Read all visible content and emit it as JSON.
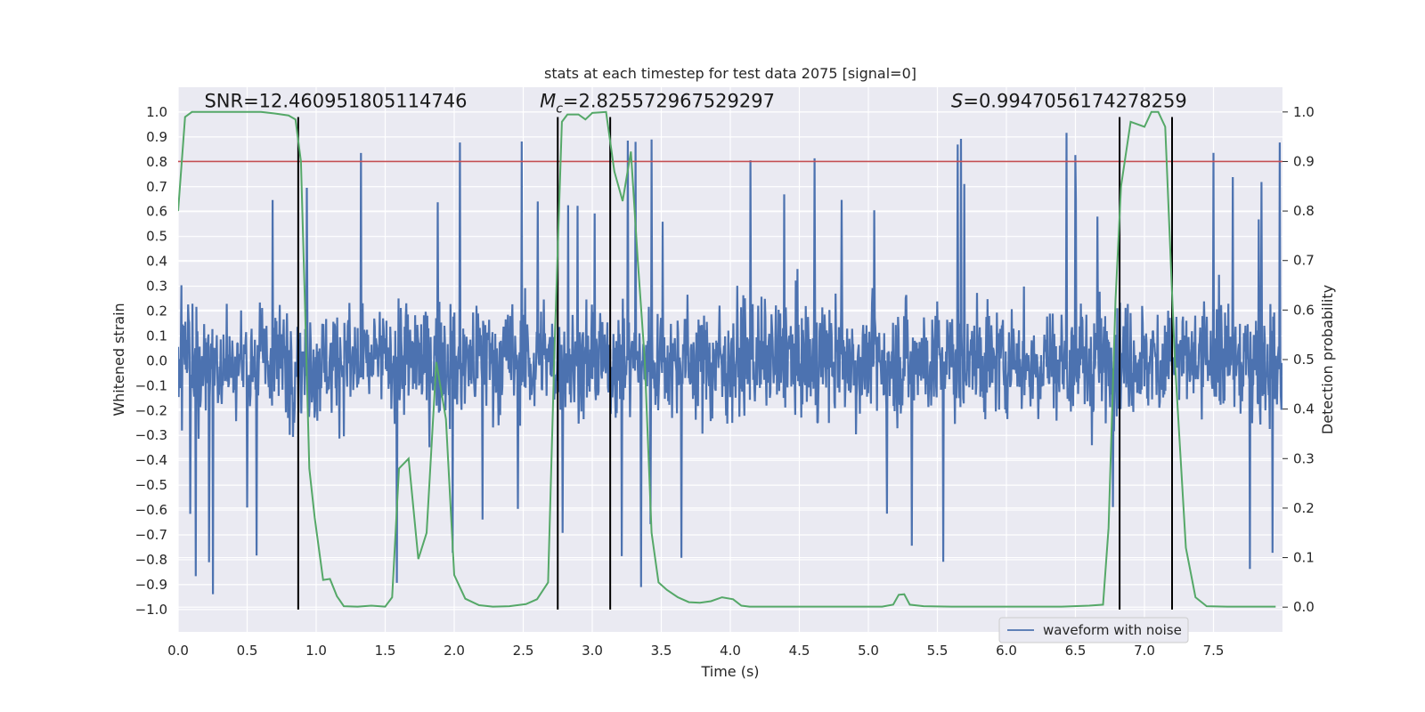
{
  "chart_data": {
    "type": "line",
    "title": "stats at each timestep for test data 2075 [signal=0]",
    "xlabel": "Time (s)",
    "ylabel": "Whitened strain",
    "y2label": "Detection probability",
    "xlim": [
      0.0,
      8.0
    ],
    "ylim": [
      -1.09,
      1.1
    ],
    "y2lim": [
      -0.05,
      1.05
    ],
    "xticks": [
      0.0,
      0.5,
      1.0,
      1.5,
      2.0,
      2.5,
      3.0,
      3.5,
      4.0,
      4.5,
      5.0,
      5.5,
      6.0,
      6.5,
      7.0,
      7.5
    ],
    "xtick_labels": [
      "0.0",
      "0.5",
      "1.0",
      "1.5",
      "2.0",
      "2.5",
      "3.0",
      "3.5",
      "4.0",
      "4.5",
      "5.0",
      "5.5",
      "6.0",
      "6.5",
      "7.0",
      "7.5"
    ],
    "yticks": [
      1.0,
      0.9,
      0.8,
      0.7,
      0.6,
      0.5,
      0.4,
      0.3,
      0.2,
      0.1,
      0.0,
      -0.1,
      -0.2,
      -0.3,
      -0.4,
      -0.5,
      -0.6,
      -0.7,
      -0.8,
      -0.9,
      -1.0
    ],
    "ytick_labels": [
      "1.0",
      "0.9",
      "0.8",
      "0.7",
      "0.6",
      "0.5",
      "0.4",
      "0.3",
      "0.2",
      "0.1",
      "0.0",
      "−0.1",
      "−0.2",
      "−0.3",
      "−0.4",
      "−0.5",
      "−0.6",
      "−0.7",
      "−0.8",
      "−0.9",
      "−1.0"
    ],
    "y2ticks": [
      1.0,
      0.9,
      0.8,
      0.7,
      0.6,
      0.5,
      0.4,
      0.3,
      0.2,
      0.1,
      0.0
    ],
    "y2tick_labels": [
      "1.0",
      "0.9",
      "0.8",
      "0.7",
      "0.6",
      "0.5",
      "0.4",
      "0.3",
      "0.2",
      "0.1",
      "0.0"
    ],
    "series": [
      {
        "name": "waveform with noise",
        "axis": "left",
        "color": "#4c72b0",
        "note": "dense whitened noise, roughly +/-0.45 with spikes up to ~0.97 and down to ~-1.0",
        "envelope_max": 0.97,
        "envelope_min": -1.0,
        "sample_count": 2000
      },
      {
        "name": "detection probability",
        "axis": "right",
        "color": "#55a868",
        "x": [
          0.0,
          0.05,
          0.1,
          0.2,
          0.3,
          0.4,
          0.5,
          0.6,
          0.7,
          0.8,
          0.85,
          0.89,
          0.92,
          0.95,
          0.99,
          1.05,
          1.1,
          1.15,
          1.2,
          1.3,
          1.4,
          1.5,
          1.55,
          1.6,
          1.67,
          1.74,
          1.8,
          1.87,
          1.94,
          2.0,
          2.08,
          2.18,
          2.28,
          2.4,
          2.52,
          2.6,
          2.68,
          2.73,
          2.78,
          2.82,
          2.9,
          2.95,
          3.0,
          3.05,
          3.1,
          3.16,
          3.22,
          3.28,
          3.33,
          3.38,
          3.43,
          3.48,
          3.54,
          3.62,
          3.7,
          3.78,
          3.86,
          3.94,
          4.02,
          4.08,
          4.14,
          4.3,
          4.5,
          4.7,
          4.9,
          5.1,
          5.18,
          5.22,
          5.26,
          5.3,
          5.4,
          5.6,
          5.8,
          6.0,
          6.2,
          6.4,
          6.6,
          6.7,
          6.74,
          6.79,
          6.83,
          6.9,
          7.0,
          7.05,
          7.1,
          7.15,
          7.22,
          7.3,
          7.37,
          7.45,
          7.6,
          7.8,
          7.95
        ],
        "values": [
          0.8,
          0.99,
          1.0,
          1.0,
          1.0,
          1.0,
          1.0,
          1.0,
          0.997,
          0.993,
          0.985,
          0.9,
          0.6,
          0.28,
          0.18,
          0.055,
          0.057,
          0.022,
          0.002,
          0.001,
          0.003,
          0.001,
          0.02,
          0.28,
          0.3,
          0.097,
          0.15,
          0.495,
          0.38,
          0.065,
          0.017,
          0.004,
          0.001,
          0.002,
          0.006,
          0.016,
          0.05,
          0.55,
          0.98,
          0.995,
          0.995,
          0.985,
          0.998,
          0.999,
          1.0,
          0.88,
          0.82,
          0.92,
          0.7,
          0.5,
          0.15,
          0.05,
          0.035,
          0.02,
          0.01,
          0.009,
          0.012,
          0.02,
          0.016,
          0.003,
          0.001,
          0.001,
          0.001,
          0.001,
          0.001,
          0.001,
          0.005,
          0.025,
          0.026,
          0.005,
          0.002,
          0.001,
          0.001,
          0.001,
          0.001,
          0.001,
          0.003,
          0.005,
          0.16,
          0.62,
          0.85,
          0.98,
          0.97,
          1.0,
          1.0,
          0.97,
          0.5,
          0.12,
          0.02,
          0.002,
          0.001,
          0.001,
          0.001
        ]
      }
    ],
    "threshold": {
      "axis": "right",
      "value": 0.9,
      "color": "#c44e52"
    },
    "vertical_lines": {
      "color": "#000000",
      "x": [
        0.87,
        2.75,
        3.13,
        6.82,
        7.2
      ],
      "ymin": -1.0,
      "ymax": 0.98
    },
    "annotations": [
      {
        "name": "snr-annotation",
        "text": "SNR=12.460951805114746",
        "x": 0.19,
        "y": 1.02
      },
      {
        "name": "chirp-mass-annotation",
        "symbol": "M",
        "subscript": "c",
        "text": "=2.825572967529297",
        "x": 2.62,
        "y": 1.02
      },
      {
        "name": "spin-annotation",
        "symbol": "S",
        "text": "=0.9947056174278259",
        "x": 5.6,
        "y": 1.02
      }
    ],
    "legend": {
      "entries": [
        "waveform with noise"
      ],
      "placement": "lower-right"
    },
    "grid": true,
    "colors": {
      "background": "#eaeaf2",
      "grid": "#ffffff",
      "text": "#262626"
    }
  }
}
